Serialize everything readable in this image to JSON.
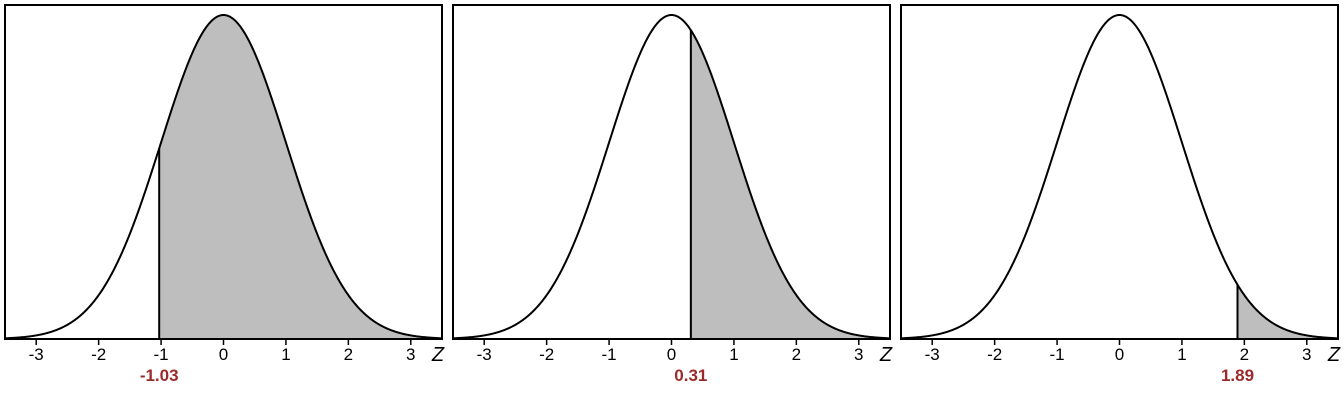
{
  "chart_data": [
    {
      "type": "area",
      "distribution": "standard normal",
      "shaded_region": "right tail",
      "cutoff": -1.03,
      "cutoff_label": "-1.03",
      "xlabel": "Z",
      "xlim": [
        -3.5,
        3.5
      ],
      "xticks": [
        -3,
        -2,
        -1,
        0,
        1,
        2,
        3
      ],
      "xtick_labels": [
        "-3",
        "-2",
        "-1",
        "0",
        "1",
        "2",
        "3"
      ]
    },
    {
      "type": "area",
      "distribution": "standard normal",
      "shaded_region": "right tail",
      "cutoff": 0.31,
      "cutoff_label": "0.31",
      "xlabel": "Z",
      "xlim": [
        -3.5,
        3.5
      ],
      "xticks": [
        -3,
        -2,
        -1,
        0,
        1,
        2,
        3
      ],
      "xtick_labels": [
        "-3",
        "-2",
        "-1",
        "0",
        "1",
        "2",
        "3"
      ]
    },
    {
      "type": "area",
      "distribution": "standard normal",
      "shaded_region": "right tail",
      "cutoff": 1.89,
      "cutoff_label": "1.89",
      "xlabel": "Z",
      "xlim": [
        -3.5,
        3.5
      ],
      "xticks": [
        -3,
        -2,
        -1,
        0,
        1,
        2,
        3
      ],
      "xtick_labels": [
        "-3",
        "-2",
        "-1",
        "0",
        "1",
        "2",
        "3"
      ]
    }
  ],
  "colors": {
    "shade": "#bebebe",
    "curve": "#000000",
    "cutoff_label": "#9b2b2b"
  }
}
